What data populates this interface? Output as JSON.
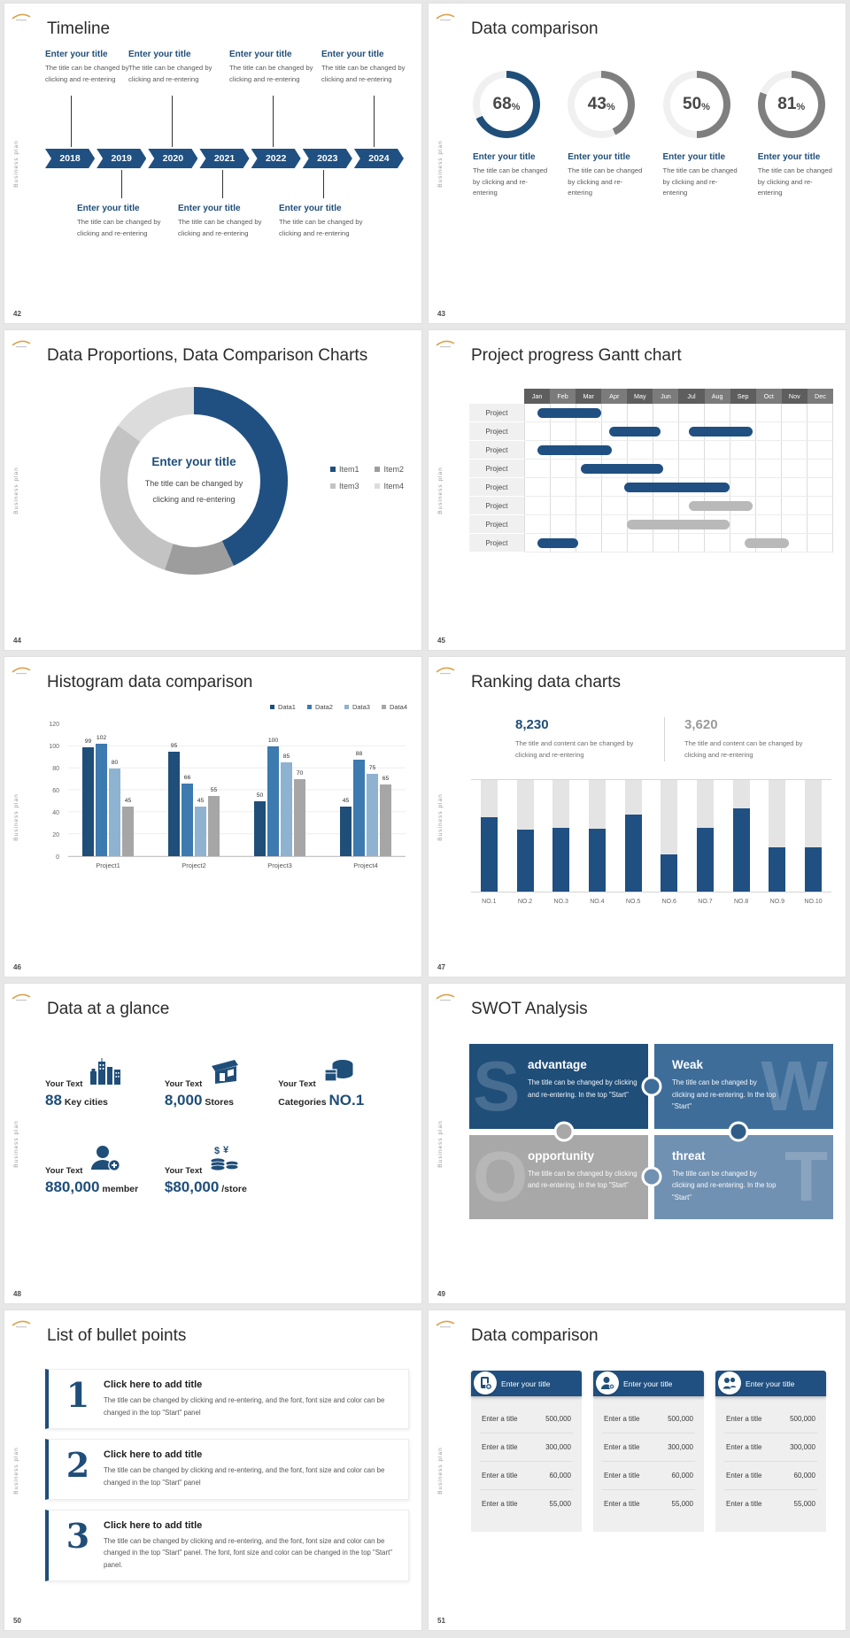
{
  "common": {
    "vertical_label": "Business plan"
  },
  "slide42": {
    "number": "42",
    "title": "Timeline",
    "years": [
      "2018",
      "2019",
      "2020",
      "2021",
      "2022",
      "2023",
      "2024"
    ],
    "item_title": "Enter your title",
    "item_body": "The title can be changed by clicking and re-entering"
  },
  "slide43": {
    "number": "43",
    "title": "Data comparison",
    "item_title": "Enter your title",
    "item_body": "The title can be changed by clicking and re-entering",
    "items": [
      {
        "percent": 68,
        "color": "#1f4e79"
      },
      {
        "percent": 43,
        "color": "#7f7f7f"
      },
      {
        "percent": 50,
        "color": "#7f7f7f"
      },
      {
        "percent": 81,
        "color": "#7f7f7f"
      }
    ]
  },
  "slide44": {
    "number": "44",
    "title": "Data Proportions, Data Comparison Charts",
    "center_title": "Enter your title",
    "center_body": "The title can be changed by clicking and re-entering",
    "chart": {
      "type": "pie",
      "legend": [
        "Item1",
        "Item2",
        "Item3",
        "Item4"
      ],
      "values": [
        43,
        12,
        30,
        15
      ],
      "colors": [
        "#1f5081",
        "#9d9d9d",
        "#c3c3c3",
        "#dcdcdc"
      ]
    }
  },
  "slide45": {
    "number": "45",
    "title": "Project progress Gantt chart",
    "months": [
      "Jan",
      "Feb",
      "Mar",
      "Apr",
      "May",
      "Jun",
      "Jul",
      "Aug",
      "Sep",
      "Oct",
      "Nov",
      "Dec"
    ],
    "row_label": "Project",
    "bars": [
      [
        {
          "s": 0.5,
          "e": 3.0,
          "c": "b"
        }
      ],
      [
        {
          "s": 3.3,
          "e": 5.3,
          "c": "b"
        },
        {
          "s": 6.4,
          "e": 8.9,
          "c": "b"
        }
      ],
      [
        {
          "s": 0.5,
          "e": 3.4,
          "c": "b"
        }
      ],
      [
        {
          "s": 2.2,
          "e": 5.4,
          "c": "b"
        }
      ],
      [
        {
          "s": 3.9,
          "e": 8.0,
          "c": "b"
        }
      ],
      [
        {
          "s": 6.4,
          "e": 8.9,
          "c": "g"
        }
      ],
      [
        {
          "s": 4.0,
          "e": 8.0,
          "c": "g"
        }
      ],
      [
        {
          "s": 0.5,
          "e": 2.1,
          "c": "b"
        },
        {
          "s": 8.6,
          "e": 10.3,
          "c": "g"
        }
      ]
    ]
  },
  "slide46": {
    "number": "46",
    "title": "Histogram data comparison",
    "chart": {
      "type": "bar",
      "categories": [
        "Project1",
        "Project2",
        "Project3",
        "Project4"
      ],
      "series": [
        {
          "name": "Data1",
          "color": "#1f4e79",
          "values": [
            99,
            95,
            50,
            45
          ]
        },
        {
          "name": "Data2",
          "color": "#3d7ab0",
          "values": [
            102,
            66,
            100,
            88
          ]
        },
        {
          "name": "Data3",
          "color": "#8fb2d0",
          "values": [
            80,
            45,
            85,
            75
          ]
        },
        {
          "name": "Data4",
          "color": "#a6a6a6",
          "values": [
            45,
            55,
            70,
            65
          ]
        }
      ],
      "yticks": [
        0,
        20,
        40,
        60,
        80,
        100,
        120
      ],
      "ylim": [
        0,
        120
      ]
    }
  },
  "slide47": {
    "number": "47",
    "title": "Ranking data charts",
    "stat1": {
      "value": "8,230",
      "caption": "The title and content can be changed by clicking and re-entering"
    },
    "stat2": {
      "value": "3,620",
      "caption": "The title and content can be changed by clicking and re-entering"
    },
    "chart": {
      "type": "bar",
      "categories": [
        "NO.1",
        "NO.2",
        "NO.3",
        "NO.4",
        "NO.5",
        "NO.6",
        "NO.7",
        "NO.8",
        "NO.9",
        "NO.10"
      ],
      "values_percent": [
        66,
        55,
        57,
        56,
        69,
        33,
        57,
        74,
        39,
        39
      ]
    }
  },
  "slide48": {
    "number": "48",
    "title": "Data at a glance",
    "stats": [
      {
        "label": "Your Text",
        "value": "88",
        "unit": "Key cities",
        "unit_first": false,
        "icon": "city-buildings-icon"
      },
      {
        "label": "Your Text",
        "value": "8,000",
        "unit": "Stores",
        "unit_first": false,
        "icon": "store-icon"
      },
      {
        "label": "Your Text",
        "value": "NO.1",
        "unit": "Categories",
        "unit_first": true,
        "icon": "categories-box-icon"
      },
      {
        "label": "Your Text",
        "value": "880,000",
        "unit": "member",
        "unit_first": false,
        "icon": "member-add-icon"
      },
      {
        "label": "Your Text",
        "value": "$80,000",
        "unit": "/store",
        "unit_first": false,
        "icon": "coins-icon"
      }
    ]
  },
  "slide49": {
    "number": "49",
    "title": "SWOT Analysis",
    "quadrants": [
      {
        "letter": "S",
        "title": "advantage",
        "body": "The title can be changed by clicking and re-entering. In the top \"Start\"",
        "color": "#1f4e79",
        "side": "left"
      },
      {
        "letter": "W",
        "title": "Weak",
        "body": "The title can be changed by clicking and re-entering. In the top \"Start\"",
        "color": "#3e6d99",
        "side": "right"
      },
      {
        "letter": "O",
        "title": "opportunity",
        "body": "The title can be changed by clicking and re-entering. In the top \"Start\"",
        "color": "#a8a8a8",
        "side": "left"
      },
      {
        "letter": "T",
        "title": "threat",
        "body": "The title can be changed by clicking and re-entering. In the top \"Start\"",
        "color": "#7191b2",
        "side": "right"
      }
    ],
    "connector_colors": [
      "#3e6d99",
      "#a8a8a8",
      "#2f5d88",
      "#7191b2"
    ]
  },
  "slide50": {
    "number": "50",
    "title": "List of bullet points",
    "items": [
      {
        "num": "1",
        "title": "Click here to add title",
        "body": "The title can be changed by clicking and re-entering, and the font, font size and color can be changed in the top \"Start\" panel"
      },
      {
        "num": "2",
        "title": "Click here to add title",
        "body": "The title can be changed by clicking and re-entering, and the font, font size and color can be changed in the top \"Start\" panel"
      },
      {
        "num": "3",
        "title": "Click here to add title",
        "body": "The title can be changed by clicking and re-entering, and the font, font size and color can be changed in the top \"Start\" panel. The font, font size and color can be changed in the top \"Start\" panel."
      }
    ]
  },
  "slide51": {
    "number": "51",
    "title": "Data comparison",
    "cards": [
      {
        "header": "Enter your title",
        "icon": "device-add-icon",
        "rows": [
          [
            "Enter a title",
            "500,000"
          ],
          [
            "Enter a title",
            "300,000"
          ],
          [
            "Enter a title",
            "60,000"
          ],
          [
            "Enter a title",
            "55,000"
          ]
        ]
      },
      {
        "header": "Enter your title",
        "icon": "person-add-icon",
        "rows": [
          [
            "Enter a title",
            "500,000"
          ],
          [
            "Enter a title",
            "300,000"
          ],
          [
            "Enter a title",
            "60,000"
          ],
          [
            "Enter a title",
            "55,000"
          ]
        ]
      },
      {
        "header": "Enter your title",
        "icon": "people-icon",
        "rows": [
          [
            "Enter a title",
            "500,000"
          ],
          [
            "Enter a title",
            "300,000"
          ],
          [
            "Enter a title",
            "60,000"
          ],
          [
            "Enter a title",
            "55,000"
          ]
        ]
      }
    ]
  }
}
